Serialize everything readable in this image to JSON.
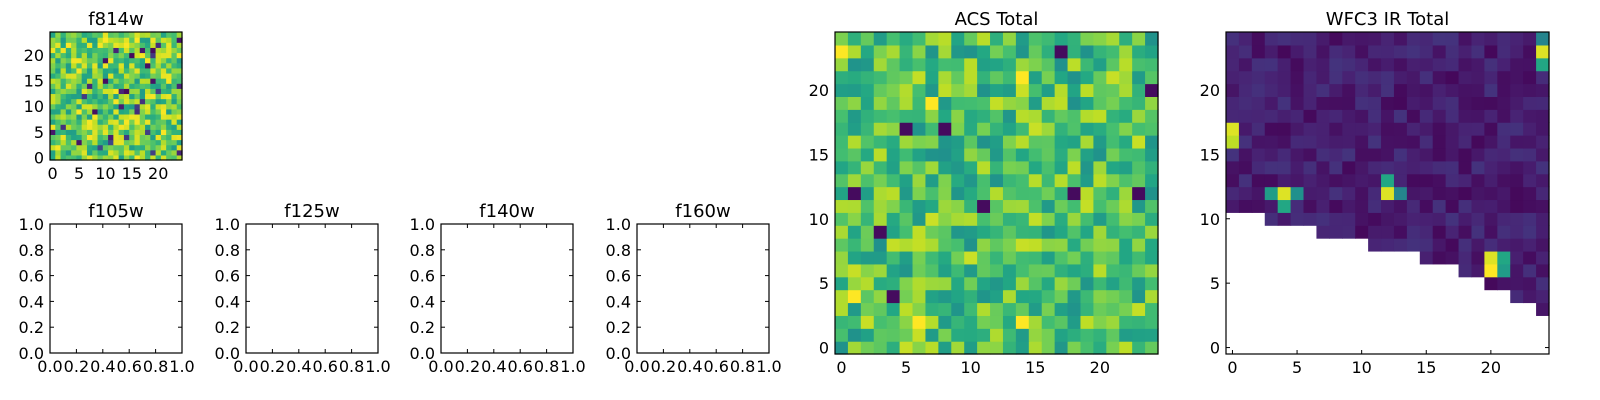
{
  "chart_data": [
    {
      "type": "heatmap",
      "title": "f814w",
      "xlabel": "",
      "ylabel": "",
      "xlim": [
        -0.5,
        24.5
      ],
      "ylim": [
        -0.5,
        24.5
      ],
      "xticks": [
        0,
        5,
        10,
        15,
        20
      ],
      "yticks": [
        0,
        5,
        10,
        15,
        20
      ],
      "grid_size": [
        25,
        25
      ],
      "colormap": "viridis",
      "value_range": [
        0,
        1
      ],
      "grid": false,
      "values": "25x25 grid of mostly high (yellow-green) normalized values with scattered low (dark purple) pixels"
    },
    {
      "type": "empty",
      "title": "f105w",
      "xlim": [
        0,
        1
      ],
      "ylim": [
        0,
        1
      ],
      "xticks": [
        0.0,
        0.2,
        0.4,
        0.6,
        0.8,
        1.0
      ],
      "yticks": [
        0.0,
        0.2,
        0.4,
        0.6,
        0.8,
        1.0
      ]
    },
    {
      "type": "empty",
      "title": "f125w",
      "xlim": [
        0,
        1
      ],
      "ylim": [
        0,
        1
      ],
      "xticks": [
        0.0,
        0.2,
        0.4,
        0.6,
        0.8,
        1.0
      ],
      "yticks": [
        0.0,
        0.2,
        0.4,
        0.6,
        0.8,
        1.0
      ]
    },
    {
      "type": "empty",
      "title": "f140w",
      "xlim": [
        0,
        1
      ],
      "ylim": [
        0,
        1
      ],
      "xticks": [
        0.0,
        0.2,
        0.4,
        0.6,
        0.8,
        1.0
      ],
      "yticks": [
        0.0,
        0.2,
        0.4,
        0.6,
        0.8,
        1.0
      ]
    },
    {
      "type": "empty",
      "title": "f160w",
      "xlim": [
        0,
        1
      ],
      "ylim": [
        0,
        1
      ],
      "xticks": [
        0.0,
        0.2,
        0.4,
        0.6,
        0.8,
        1.0
      ],
      "yticks": [
        0.0,
        0.2,
        0.4,
        0.6,
        0.8,
        1.0
      ]
    },
    {
      "type": "heatmap",
      "title": "ACS Total",
      "xlim": [
        -0.5,
        24.5
      ],
      "ylim": [
        -0.5,
        24.5
      ],
      "xticks": [
        0,
        5,
        10,
        15,
        20
      ],
      "yticks": [
        0,
        5,
        10,
        15,
        20
      ],
      "grid_size": [
        25,
        25
      ],
      "colormap": "viridis",
      "value_range": [
        0,
        1
      ],
      "grid": false,
      "low_pixels": [
        [
          8,
          17
        ],
        [
          1,
          12
        ],
        [
          3,
          9
        ],
        [
          18,
          12
        ],
        [
          23,
          12
        ],
        [
          4,
          4
        ],
        [
          11,
          11
        ],
        [
          24,
          20
        ],
        [
          17,
          23
        ],
        [
          5,
          17
        ]
      ],
      "high_pixels": [
        [
          7,
          19
        ],
        [
          14,
          21
        ],
        [
          0,
          23
        ],
        [
          1,
          4
        ],
        [
          6,
          2
        ],
        [
          14,
          2
        ]
      ]
    },
    {
      "type": "heatmap",
      "title": "WFC3 IR Total",
      "xlim": [
        -0.5,
        24.5
      ],
      "ylim": [
        -0.5,
        24.5
      ],
      "xticks": [
        0,
        5,
        10,
        15,
        20
      ],
      "yticks": [
        0,
        5,
        10,
        15,
        20
      ],
      "grid_size": [
        25,
        25
      ],
      "colormap": "viridis",
      "value_range": [
        0,
        1
      ],
      "grid": false,
      "coverage_lower_edge": [
        11,
        11,
        11,
        10,
        10,
        10,
        10,
        9,
        9,
        9,
        9,
        8,
        8,
        8,
        8,
        7,
        7,
        7,
        6,
        6,
        5,
        5,
        4,
        4,
        3
      ],
      "bright_sources": [
        {
          "x": 4,
          "y": 12,
          "value": 0.95
        },
        {
          "x": 3,
          "y": 12,
          "value": 0.55
        },
        {
          "x": 5,
          "y": 12,
          "value": 0.5
        },
        {
          "x": 4,
          "y": 11,
          "value": 0.6
        },
        {
          "x": 12,
          "y": 12,
          "value": 0.95
        },
        {
          "x": 12,
          "y": 13,
          "value": 0.6
        },
        {
          "x": 13,
          "y": 12,
          "value": 0.45
        },
        {
          "x": 20,
          "y": 6,
          "value": 1.0
        },
        {
          "x": 20,
          "y": 7,
          "value": 0.95
        },
        {
          "x": 21,
          "y": 7,
          "value": 0.6
        },
        {
          "x": 21,
          "y": 6,
          "value": 0.55
        },
        {
          "x": 0,
          "y": 16,
          "value": 0.9
        },
        {
          "x": 0,
          "y": 17,
          "value": 0.95
        },
        {
          "x": 24,
          "y": 23,
          "value": 0.95
        },
        {
          "x": 24,
          "y": 22,
          "value": 0.6
        },
        {
          "x": 24,
          "y": 24,
          "value": 0.45
        }
      ]
    }
  ]
}
